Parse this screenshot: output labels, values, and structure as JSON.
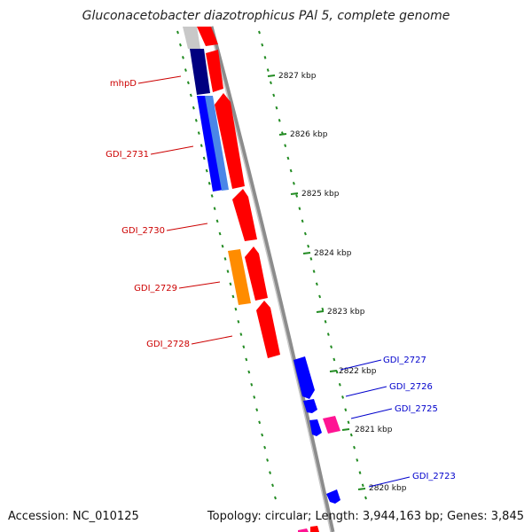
{
  "title": "Gluconacetobacter diazotrophicus PAl 5, complete genome",
  "footer": {
    "accession": "Accession: NC_010125",
    "summary": "Topology: circular; Length: 3,944,163 bp; Genes: 3,845"
  },
  "colors": {
    "forward_gene": "#ff0000",
    "reverse_gene": "#0000ff",
    "dark_gene": "#000080",
    "light_gene": "#4a86e8",
    "orange_gene": "#ff8c00",
    "pink_gene": "#ff1493",
    "grey_gene": "#c8c8c8",
    "backbone": "#8c8c8c",
    "ticks": "#228b22",
    "left_label": "#cc0000",
    "right_label": "#0000cc"
  },
  "ruler": {
    "ticks": [
      {
        "label": "2827 kbp"
      },
      {
        "label": "2826 kbp"
      },
      {
        "label": "2825 kbp"
      },
      {
        "label": "2824 kbp"
      },
      {
        "label": "2823 kbp"
      },
      {
        "label": "2822 kbp"
      },
      {
        "label": "2821 kbp"
      },
      {
        "label": "2820 kbp"
      }
    ]
  },
  "gene_labels_left": [
    "mhpD",
    "GDI_2731",
    "GDI_2730",
    "GDI_2729",
    "GDI_2728"
  ],
  "gene_labels_right": [
    "GDI_2727",
    "GDI_2726",
    "GDI_2725",
    "GDI_2723"
  ]
}
